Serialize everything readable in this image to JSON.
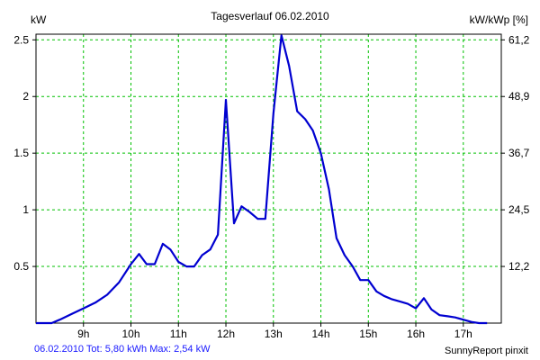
{
  "header": {
    "title": "Tagesverlauf 06.02.2010",
    "left_unit": "kW",
    "right_unit": "kW/kWp [%]"
  },
  "footer": {
    "summary": "06.02.2010 Tot: 5,80 kWh Max: 2,54 kW",
    "credit": "SunnyReport pinxit"
  },
  "colors": {
    "line": "#0000d0",
    "grid": "#00c000",
    "axis": "#000000",
    "summary_text": "#1a1aff"
  },
  "chart_data": {
    "type": "line",
    "title": "Tagesverlauf 06.02.2010",
    "xlabel": "",
    "ylabel": "kW",
    "y2label": "kW/kWp [%]",
    "grid": true,
    "xlim": [
      8.0,
      17.8
    ],
    "ylim": [
      0,
      2.55
    ],
    "x_ticks": [
      9,
      10,
      11,
      12,
      13,
      14,
      15,
      16,
      17
    ],
    "x_tick_labels": [
      "9h",
      "10h",
      "11h",
      "12h",
      "13h",
      "14h",
      "15h",
      "16h",
      "17h"
    ],
    "y_ticks": [
      0.5,
      1,
      1.5,
      2,
      2.5
    ],
    "y_tick_labels": [
      "0.5",
      "1",
      "1.5",
      "2",
      "2.5"
    ],
    "y2_tick_labels": [
      "12,2",
      "24,5",
      "36,7",
      "48,9",
      "61,2"
    ],
    "series": [
      {
        "x": [
          8.0,
          8.33,
          8.5,
          8.75,
          9.0,
          9.25,
          9.5,
          9.75,
          10.0,
          10.17,
          10.33,
          10.5,
          10.67,
          10.83,
          11.0,
          11.17,
          11.33,
          11.5,
          11.67,
          11.83,
          12.0,
          12.17,
          12.33,
          12.5,
          12.67,
          12.83,
          13.0,
          13.17,
          13.33,
          13.5,
          13.67,
          13.83,
          14.0,
          14.17,
          14.33,
          14.5,
          14.67,
          14.83,
          15.0,
          15.17,
          15.33,
          15.5,
          15.67,
          15.83,
          16.0,
          16.17,
          16.33,
          16.5,
          16.67,
          16.83,
          17.0,
          17.17,
          17.33,
          17.5
        ],
        "values": [
          0.0,
          0.0,
          0.03,
          0.08,
          0.13,
          0.18,
          0.25,
          0.36,
          0.52,
          0.61,
          0.52,
          0.52,
          0.7,
          0.65,
          0.54,
          0.5,
          0.5,
          0.6,
          0.65,
          0.78,
          1.97,
          0.88,
          1.03,
          0.98,
          0.92,
          0.92,
          1.85,
          2.54,
          2.27,
          1.87,
          1.8,
          1.7,
          1.5,
          1.18,
          0.75,
          0.6,
          0.5,
          0.38,
          0.38,
          0.28,
          0.24,
          0.21,
          0.19,
          0.17,
          0.13,
          0.22,
          0.12,
          0.07,
          0.06,
          0.05,
          0.03,
          0.01,
          0.0,
          0.0
        ]
      }
    ]
  }
}
